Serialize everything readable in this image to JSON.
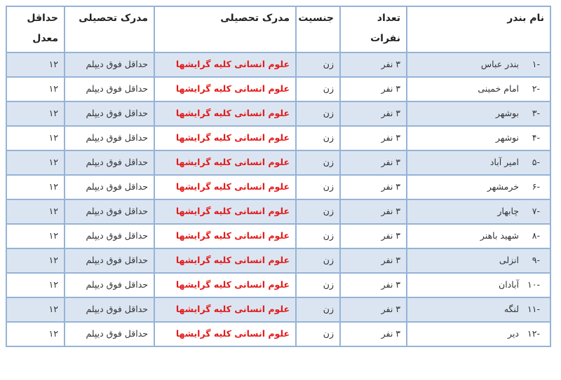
{
  "headers": [
    "نام بندر",
    "تعداد نفرات",
    "جنسیت",
    "مدرک تحصیلی",
    "مدرک تحصیلی",
    "حداقل معدل"
  ],
  "rows": [
    {
      "num": "-۱",
      "port": "بندر عباس",
      "count": "۳ نفر",
      "gender": "زن",
      "field": "علوم انسانی کلیه گرایشها",
      "degree": "حداقل فوق دیپلم",
      "gpa": "۱۲"
    },
    {
      "num": "-۲",
      "port": "امام خمینی",
      "count": "۳ نفر",
      "gender": "زن",
      "field": "علوم انسانی کلیه گرایشها",
      "degree": "حداقل فوق دیپلم",
      "gpa": "۱۲"
    },
    {
      "num": "-۳",
      "port": "بوشهر",
      "count": "۳ نفر",
      "gender": "زن",
      "field": "علوم انسانی کلیه گرایشها",
      "degree": "حداقل فوق دیپلم",
      "gpa": "۱۲"
    },
    {
      "num": "-۴",
      "port": "نوشهر",
      "count": "۳ نفر",
      "gender": "زن",
      "field": "علوم انسانی کلیه گرایشها",
      "degree": "حداقل فوق دیپلم",
      "gpa": "۱۲"
    },
    {
      "num": "-۵",
      "port": "امیر آباد",
      "count": "۳ نفر",
      "gender": "زن",
      "field": "علوم انسانی کلیه گرایشها",
      "degree": "حداقل فوق دیپلم",
      "gpa": "۱۲"
    },
    {
      "num": "-۶",
      "port": "خرمشهر",
      "count": "۳ نفر",
      "gender": "زن",
      "field": "علوم انسانی کلیه گرایشها",
      "degree": "حداقل فوق دیپلم",
      "gpa": "۱۲"
    },
    {
      "num": "-۷",
      "port": "چابهار",
      "count": "۳ نفر",
      "gender": "زن",
      "field": "علوم انسانی کلیه گرایشها",
      "degree": "حداقل فوق دیپلم",
      "gpa": "۱۲"
    },
    {
      "num": "-۸",
      "port": "شهید باهنر",
      "count": "۳ نفر",
      "gender": "زن",
      "field": "علوم انسانی کلیه گرایشها",
      "degree": "حداقل فوق دیپلم",
      "gpa": "۱۲"
    },
    {
      "num": "-۹",
      "port": "انزلی",
      "count": "۳ نفر",
      "gender": "زن",
      "field": "علوم انسانی کلیه گرایشها",
      "degree": "حداقل فوق دیپلم",
      "gpa": "۱۲"
    },
    {
      "num": "-۱۰",
      "port": "آبادان",
      "count": "۳ نفر",
      "gender": "زن",
      "field": "علوم انسانی کلیه گرایشها",
      "degree": "حداقل فوق دیپلم",
      "gpa": "۱۲"
    },
    {
      "num": "-۱۱",
      "port": "لنگه",
      "count": "۳ نفر",
      "gender": "زن",
      "field": "علوم انسانی کلیه گرایشها",
      "degree": "حداقل فوق دیپلم",
      "gpa": "۱۲"
    },
    {
      "num": "-۱۲",
      "port": "دیر",
      "count": "۳ نفر",
      "gender": "زن",
      "field": "علوم انسانی کلیه گرایشها",
      "degree": "حداقل فوق دیپلم",
      "gpa": "۱۲"
    }
  ],
  "colors": {
    "border": "#95b3d7",
    "shade": "#dbe5f1",
    "highlight": "#e41b1b"
  }
}
